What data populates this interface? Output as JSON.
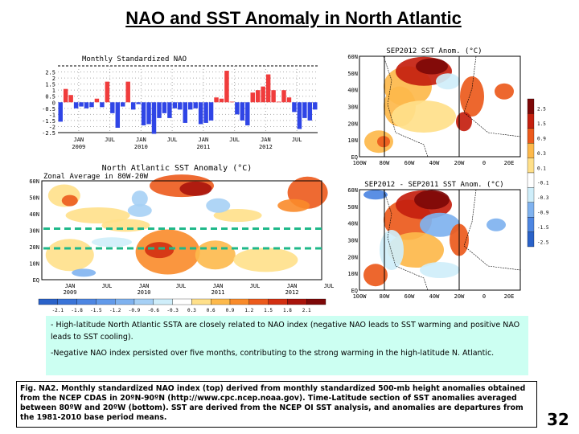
{
  "title": "NAO and SST Anomaly in North Atlantic",
  "nao_panel": {
    "title": "Monthly Standardized NAO",
    "y_ticks": [
      "2.5",
      "2",
      "1.5",
      "1",
      "0.5",
      "0",
      "-0.5",
      "-1",
      "-1.5",
      "-2",
      "-2.5"
    ],
    "x_ticks": [
      [
        "JAN",
        "2009"
      ],
      [
        "JUL",
        ""
      ],
      [
        "JAN",
        "2010"
      ],
      [
        "JUL",
        ""
      ],
      [
        "JAN",
        "2011"
      ],
      [
        "JUL",
        ""
      ],
      [
        "JAN",
        "2012"
      ],
      [
        "JUL",
        ""
      ]
    ],
    "positive_color": "#f03c3c",
    "negative_color": "#2f45e6"
  },
  "chart_data": {
    "type": "bar",
    "title": "Monthly Standardized NAO",
    "ylim": [
      -2.5,
      3
    ],
    "values": [
      -1.6,
      1.1,
      0.6,
      -0.5,
      -0.35,
      -0.5,
      -0.4,
      0.3,
      -0.4,
      1.7,
      -0.9,
      -2.1,
      -0.35,
      1.7,
      -0.6,
      -0.15,
      -1.9,
      -1.8,
      -2.6,
      -1.3,
      -0.9,
      -1.3,
      -0.5,
      -0.6,
      -1.7,
      -0.6,
      -0.5,
      -1.8,
      -1.7,
      -1.5,
      0.4,
      0.3,
      2.6,
      0.05,
      -1.0,
      -1.5,
      -1.9,
      0.8,
      1.0,
      1.3,
      2.3,
      1.0,
      0.05,
      1.0,
      0.4,
      -0.8,
      -2.2,
      -1.3,
      -1.5,
      -0.6
    ]
  },
  "hovmoller": {
    "title": "North Atlantic SST Anomaly (°C)",
    "subtitle": "Zonal Average in 80W-20W",
    "y_ticks": [
      "60N",
      "50N",
      "40N",
      "30N",
      "20N",
      "10N",
      "EQ"
    ],
    "x_ticks": [
      [
        "JAN",
        "2009"
      ],
      [
        "JUL",
        ""
      ],
      [
        "JAN",
        "2010"
      ],
      [
        "JUL",
        ""
      ],
      [
        "JAN",
        "2011"
      ],
      [
        "JUL",
        ""
      ],
      [
        "JAN",
        "2012"
      ],
      [
        "JUL",
        ""
      ]
    ],
    "colorbar_labels": [
      "-2.1",
      "-1.8",
      "-1.5",
      "-1.2",
      "-0.9",
      "-0.6",
      "-0.3",
      "0.3",
      "0.6",
      "0.9",
      "1.2",
      "1.5",
      "1.8",
      "2.1"
    ],
    "colorbar_colors": [
      "#2a62c9",
      "#3a74d8",
      "#4d86e2",
      "#629aea",
      "#7fb2ef",
      "#a6d0f5",
      "#cfeefa",
      "#ffffff",
      "#ffe08a",
      "#fdb94b",
      "#f98b2a",
      "#ec5a1c",
      "#d22f12",
      "#a8140c",
      "#7d0808"
    ],
    "band_color": "#1fb88a"
  },
  "map_top": {
    "title": "SEP2012 SST Anom. (°C)",
    "y_ticks": [
      "60N",
      "50N",
      "40N",
      "30N",
      "20N",
      "10N",
      "EQ"
    ],
    "x_ticks": [
      "100W",
      "80W",
      "60W",
      "40W",
      "20W",
      "0",
      "20E"
    ]
  },
  "map_bottom": {
    "title": "SEP2012 - SEP2011 SST Anom. (°C)",
    "y_ticks": [
      "60N",
      "50N",
      "40N",
      "30N",
      "20N",
      "10N",
      "EQ"
    ],
    "x_ticks": [
      "100W",
      "80W",
      "60W",
      "40W",
      "20W",
      "0",
      "20E"
    ]
  },
  "map_colorbar": {
    "labels": [
      "2.5",
      "1.5",
      "0.9",
      "0.3",
      "0.1",
      "-0.1",
      "-0.3",
      "-0.9",
      "-1.5",
      "-2.5"
    ],
    "colors": [
      "#7d0808",
      "#c4200f",
      "#ec5a1c",
      "#fdb94b",
      "#ffe08a",
      "#ffffff",
      "#cfeefa",
      "#7fb2ef",
      "#4d86e2",
      "#2a62c9"
    ]
  },
  "notes": [
    "- High-latitude North Atlantic SSTA are closely related to NAO index (negative NAO leads to SST warming and positive NAO leads to SST cooling).",
    "-Negative NAO index persisted over five months, contributing to the strong warming in the high-latitude N. Atlantic."
  ],
  "caption": "Fig. NA2. Monthly standardized NAO index (top) derived from monthly standardized 500-mb height anomalies obtained from the NCEP CDAS in 20ºN-90ºN (http://www.cpc.ncep.noaa.gov). Time-Latitude section of SST anomalies averaged between 80ºW and 20ºW (bottom). SST are derived from the NCEP OI SST analysis, and anomalies are departures from the 1981-2010 base period means.",
  "page_number": "32"
}
